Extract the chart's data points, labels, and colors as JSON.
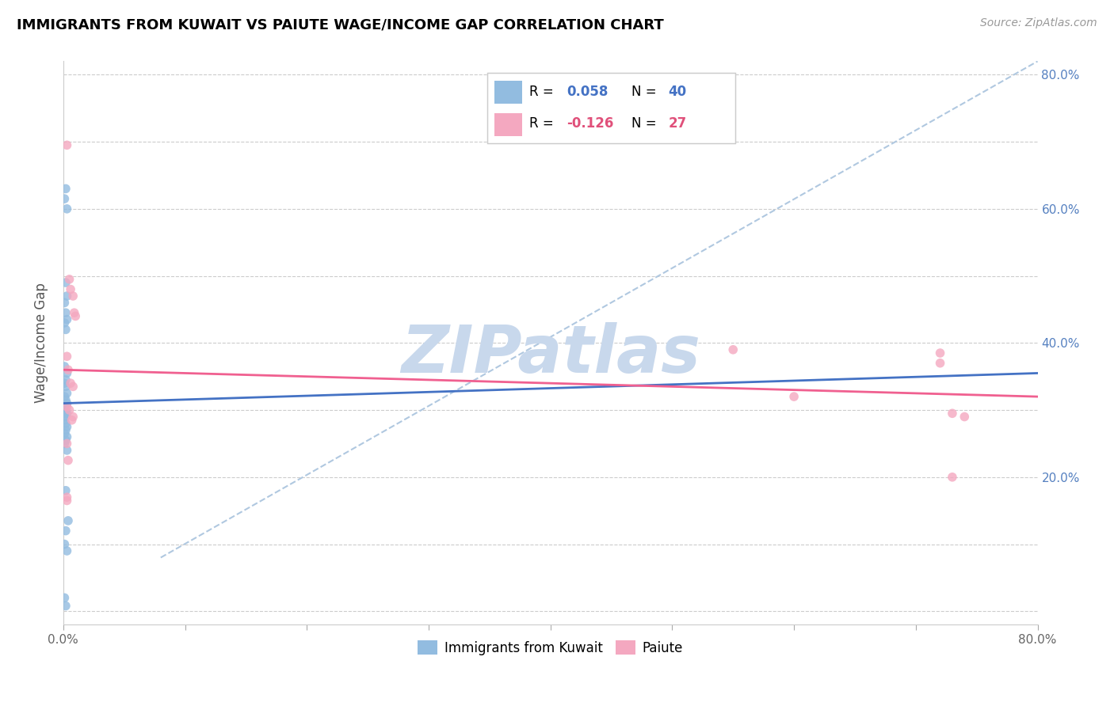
{
  "title": "IMMIGRANTS FROM KUWAIT VS PAIUTE WAGE/INCOME GAP CORRELATION CHART",
  "source": "Source: ZipAtlas.com",
  "ylabel": "Wage/Income Gap",
  "xlim": [
    0.0,
    0.8
  ],
  "ylim": [
    -0.02,
    0.82
  ],
  "xticks": [
    0.0,
    0.1,
    0.2,
    0.3,
    0.4,
    0.5,
    0.6,
    0.7,
    0.8
  ],
  "xticklabels": [
    "0.0%",
    "",
    "",
    "",
    "",
    "",
    "",
    "",
    "80.0%"
  ],
  "yticks": [
    0.0,
    0.1,
    0.2,
    0.3,
    0.4,
    0.5,
    0.6,
    0.7,
    0.8
  ],
  "yticklabels_right": [
    "",
    "",
    "20.0%",
    "",
    "40.0%",
    "",
    "60.0%",
    "",
    "80.0%"
  ],
  "blue_scatter_x": [
    0.002,
    0.001,
    0.003,
    0.002,
    0.003,
    0.001,
    0.002,
    0.003,
    0.001,
    0.002,
    0.001,
    0.003,
    0.002,
    0.001,
    0.002,
    0.003,
    0.001,
    0.002,
    0.003,
    0.001,
    0.002,
    0.001,
    0.003,
    0.002,
    0.001,
    0.002,
    0.003,
    0.002,
    0.001,
    0.003,
    0.002,
    0.001,
    0.003,
    0.002,
    0.004,
    0.002,
    0.001,
    0.003,
    0.001,
    0.002
  ],
  "blue_scatter_y": [
    0.63,
    0.615,
    0.6,
    0.49,
    0.47,
    0.46,
    0.445,
    0.435,
    0.43,
    0.42,
    0.365,
    0.355,
    0.345,
    0.34,
    0.335,
    0.325,
    0.32,
    0.315,
    0.31,
    0.305,
    0.3,
    0.295,
    0.295,
    0.29,
    0.285,
    0.28,
    0.275,
    0.27,
    0.265,
    0.26,
    0.255,
    0.25,
    0.24,
    0.18,
    0.135,
    0.12,
    0.1,
    0.09,
    0.02,
    0.008
  ],
  "pink_scatter_x": [
    0.003,
    0.005,
    0.006,
    0.008,
    0.009,
    0.01,
    0.003,
    0.004,
    0.006,
    0.008,
    0.003,
    0.005,
    0.008,
    0.007,
    0.003,
    0.004,
    0.003,
    0.003,
    0.55,
    0.6,
    0.72,
    0.72,
    0.73,
    0.73,
    0.74
  ],
  "pink_scatter_y": [
    0.695,
    0.495,
    0.48,
    0.47,
    0.445,
    0.44,
    0.38,
    0.36,
    0.34,
    0.335,
    0.305,
    0.3,
    0.29,
    0.285,
    0.25,
    0.225,
    0.17,
    0.165,
    0.39,
    0.32,
    0.385,
    0.37,
    0.2,
    0.295,
    0.29
  ],
  "blue_line_x": [
    0.0,
    0.8
  ],
  "blue_line_y": [
    0.31,
    0.355
  ],
  "pink_line_x": [
    0.0,
    0.8
  ],
  "pink_line_y": [
    0.36,
    0.32
  ],
  "dashed_line_x": [
    0.08,
    0.8
  ],
  "dashed_line_y": [
    0.08,
    0.82
  ],
  "blue_dot_color": "#92bce0",
  "blue_line_color": "#4472c4",
  "pink_dot_color": "#f4a8c0",
  "pink_line_color": "#f06090",
  "dashed_color": "#b0c8e0",
  "scatter_size": 70,
  "legend_r_blue_color": "#4472c4",
  "legend_r_pink_color": "#e0507a",
  "watermark_text": "ZIPatlas",
  "watermark_color": "#c8d8ec",
  "bottom_legend_blue": "Immigrants from Kuwait",
  "bottom_legend_pink": "Paiute",
  "title_fontsize": 13,
  "axis_tick_fontsize": 11,
  "right_tick_color": "#5580c0"
}
